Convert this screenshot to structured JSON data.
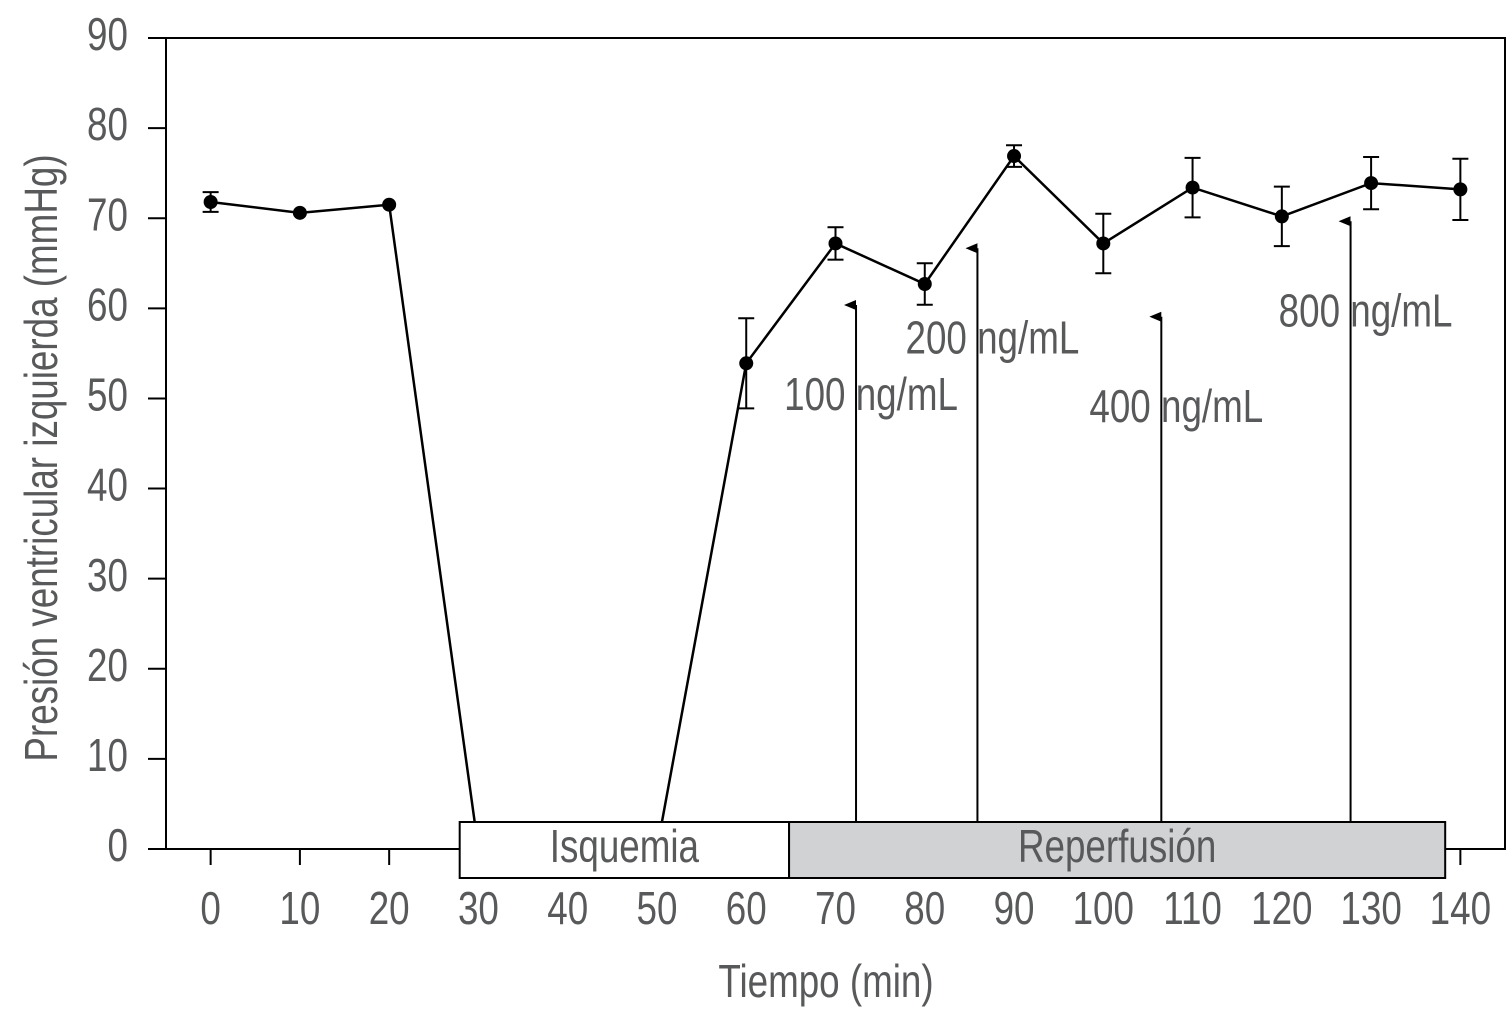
{
  "chart_data": {
    "type": "line",
    "x_label": "Tiempo (min)",
    "y_label": "Presión ventricular izquierda (mmHg)",
    "x": [
      0,
      10,
      20,
      30,
      40,
      50,
      60,
      70,
      80,
      90,
      100,
      110,
      120,
      130,
      140
    ],
    "series": [
      {
        "color": "#000000",
        "values": [
          71.8,
          70.6,
          71.5,
          0,
          0,
          0,
          53.9,
          67.2,
          62.7,
          76.9,
          67.2,
          73.4,
          70.2,
          73.9,
          73.2
        ],
        "errors": [
          1.1,
          null,
          null,
          null,
          null,
          null,
          5,
          1.8,
          2.3,
          1.2,
          3.3,
          3.3,
          3.3,
          2.9,
          3.4
        ]
      }
    ],
    "xlim": [
      -5,
      145
    ],
    "ylim": [
      0,
      90
    ],
    "xticks": [
      0,
      10,
      20,
      30,
      40,
      50,
      60,
      70,
      80,
      90,
      100,
      110,
      120,
      130,
      140
    ],
    "yticks": [
      0,
      10,
      20,
      30,
      40,
      50,
      60,
      70,
      80,
      90
    ],
    "phases": [
      {
        "label": "Isquemia",
        "start": 27.9,
        "end": 64.8,
        "color": "#ffffff"
      },
      {
        "label": "Reperfusión",
        "start": 64.8,
        "end": 138.3,
        "color": "#d1d2d4"
      }
    ],
    "annotations": [
      {
        "text": "100 ng/mL",
        "x": 72.3,
        "y": 61.7
      },
      {
        "text": "200 ng/mL",
        "x": 85.9,
        "y": 68
      },
      {
        "text": "400 ng/mL",
        "x": 106.5,
        "y": 60.4
      },
      {
        "text": "800 ng/mL",
        "x": 127.7,
        "y": 71
      }
    ]
  }
}
